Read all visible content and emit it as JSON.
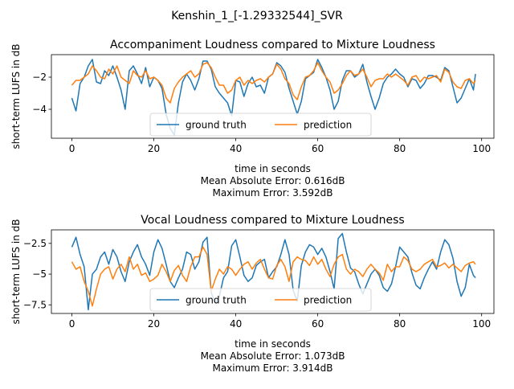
{
  "figure": {
    "title": "Kenshin_1_[-1.29332544]_SVR"
  },
  "chart_data": [
    {
      "type": "line",
      "title": "Accompaniment Loudness compared to Mixture Loudness",
      "xlabel": "time in seconds",
      "ylabel": "short-term LUFS in dB",
      "xlim": [
        -5,
        103
      ],
      "ylim": [
        -5.8,
        -0.6
      ],
      "xticks": [
        0,
        20,
        40,
        60,
        80,
        100
      ],
      "yticks": [
        -4,
        -2
      ],
      "grid": false,
      "legend": {
        "placement": "lower-center",
        "columns": 2
      },
      "stats": [
        "Mean Absolute Error: 0.616dB",
        "Maximum Error: 3.592dB"
      ],
      "series": [
        {
          "name": "ground truth",
          "color": "#1f77b4",
          "x": [
            0,
            1,
            2,
            3,
            4,
            5,
            6,
            7,
            8,
            9,
            10,
            11,
            12,
            13,
            14,
            15,
            16,
            17,
            18,
            19,
            20,
            21,
            22,
            23,
            24,
            25,
            26,
            27,
            28,
            29,
            30,
            31,
            32,
            33,
            34,
            35,
            36,
            37,
            38,
            39,
            40,
            41,
            42,
            43,
            44,
            45,
            46,
            47,
            48,
            49,
            50,
            51,
            52,
            53,
            54,
            55,
            56,
            57,
            58,
            59,
            60,
            61,
            62,
            63,
            64,
            65,
            66,
            67,
            68,
            69,
            70,
            71,
            72,
            73,
            74,
            75,
            76,
            77,
            78,
            79,
            80,
            81,
            82,
            83,
            84,
            85,
            86,
            87,
            88,
            89,
            90,
            91,
            92,
            93,
            94,
            95,
            96,
            97,
            98,
            98.5
          ],
          "y": [
            -3.3,
            -4.1,
            -2.4,
            -2.0,
            -1.3,
            -0.9,
            -2.3,
            -2.4,
            -1.6,
            -1.9,
            -1.3,
            -2.0,
            -2.8,
            -4.0,
            -1.6,
            -1.3,
            -1.8,
            -2.4,
            -1.4,
            -2.6,
            -2.0,
            -2.2,
            -2.7,
            -4.3,
            -5.2,
            -5.6,
            -3.6,
            -2.3,
            -1.8,
            -2.2,
            -2.8,
            -2.1,
            -1.0,
            -1.0,
            -1.5,
            -2.6,
            -3.0,
            -3.3,
            -3.6,
            -4.4,
            -2.2,
            -2.3,
            -3.2,
            -2.4,
            -2.0,
            -2.6,
            -2.5,
            -3.0,
            -2.0,
            -1.8,
            -1.1,
            -1.3,
            -1.7,
            -2.7,
            -3.5,
            -4.3,
            -3.5,
            -2.1,
            -1.9,
            -1.7,
            -0.9,
            -1.4,
            -2.0,
            -2.8,
            -4.0,
            -3.5,
            -2.2,
            -1.6,
            -1.6,
            -2.0,
            -1.8,
            -1.2,
            -2.3,
            -3.2,
            -4.0,
            -3.3,
            -2.4,
            -2.0,
            -1.8,
            -1.5,
            -1.8,
            -2.0,
            -2.6,
            -2.1,
            -2.2,
            -2.7,
            -2.4,
            -1.9,
            -1.9,
            -2.0,
            -2.2,
            -1.4,
            -1.6,
            -2.6,
            -3.6,
            -3.3,
            -2.7,
            -2.1,
            -2.8,
            -1.8
          ]
        },
        {
          "name": "prediction",
          "color": "#ff7f0e",
          "x": [
            0,
            1,
            2,
            3,
            4,
            5,
            6,
            7,
            8,
            9,
            10,
            11,
            12,
            13,
            14,
            15,
            16,
            17,
            18,
            19,
            20,
            21,
            22,
            23,
            24,
            25,
            26,
            27,
            28,
            29,
            30,
            31,
            32,
            33,
            34,
            35,
            36,
            37,
            38,
            39,
            40,
            41,
            42,
            43,
            44,
            45,
            46,
            47,
            48,
            49,
            50,
            51,
            52,
            53,
            54,
            55,
            56,
            57,
            58,
            59,
            60,
            61,
            62,
            63,
            64,
            65,
            66,
            67,
            68,
            69,
            70,
            71,
            72,
            73,
            74,
            75,
            76,
            77,
            78,
            79,
            80,
            81,
            82,
            83,
            84,
            85,
            86,
            87,
            88,
            89,
            90,
            91,
            92,
            93,
            94,
            95,
            96,
            97,
            98,
            98.5
          ],
          "y": [
            -2.5,
            -2.2,
            -2.2,
            -2.0,
            -1.8,
            -1.3,
            -1.6,
            -2.0,
            -2.1,
            -1.5,
            -1.8,
            -1.3,
            -2.0,
            -2.2,
            -2.4,
            -1.6,
            -1.9,
            -2.0,
            -1.6,
            -2.1,
            -2.0,
            -2.2,
            -2.5,
            -3.3,
            -3.6,
            -2.7,
            -2.3,
            -2.0,
            -1.8,
            -1.6,
            -2.0,
            -1.8,
            -1.2,
            -1.1,
            -1.4,
            -2.0,
            -2.5,
            -2.5,
            -3.0,
            -2.8,
            -2.2,
            -2.0,
            -2.5,
            -2.2,
            -2.4,
            -2.2,
            -2.1,
            -2.3,
            -2.0,
            -1.8,
            -1.2,
            -1.5,
            -2.1,
            -2.4,
            -3.1,
            -3.4,
            -2.6,
            -2.0,
            -1.9,
            -1.6,
            -1.1,
            -1.6,
            -2.0,
            -2.3,
            -3.0,
            -2.8,
            -2.4,
            -1.9,
            -1.6,
            -1.9,
            -1.8,
            -1.5,
            -2.0,
            -2.6,
            -2.2,
            -2.1,
            -2.1,
            -1.8,
            -2.0,
            -1.8,
            -2.0,
            -2.2,
            -2.5,
            -2.0,
            -1.9,
            -2.3,
            -2.0,
            -2.1,
            -2.0,
            -1.9,
            -2.3,
            -1.5,
            -1.7,
            -2.3,
            -2.6,
            -2.7,
            -2.2,
            -2.1,
            -2.4,
            -2.2
          ]
        }
      ]
    },
    {
      "type": "line",
      "title": "Vocal Loudness compared to Mixture Loudness",
      "xlabel": "time in seconds",
      "ylabel": "short-term LUFS in dB",
      "xlim": [
        -5,
        103
      ],
      "ylim": [
        -8.2,
        -1.4
      ],
      "xticks": [
        0,
        20,
        40,
        60,
        80,
        100
      ],
      "yticks": [
        -7.5,
        -5.0,
        -2.5
      ],
      "grid": false,
      "legend": {
        "placement": "lower-center",
        "columns": 2
      },
      "stats": [
        "Mean Absolute Error: 1.073dB",
        "Maximum Error: 3.914dB"
      ],
      "series": [
        {
          "name": "ground truth",
          "color": "#1f77b4",
          "x": [
            0,
            1,
            2,
            3,
            4,
            5,
            6,
            7,
            8,
            9,
            10,
            11,
            12,
            13,
            14,
            15,
            16,
            17,
            18,
            19,
            20,
            21,
            22,
            23,
            24,
            25,
            26,
            27,
            28,
            29,
            30,
            31,
            32,
            33,
            34,
            35,
            36,
            37,
            38,
            39,
            40,
            41,
            42,
            43,
            44,
            45,
            46,
            47,
            48,
            49,
            50,
            51,
            52,
            53,
            54,
            55,
            56,
            57,
            58,
            59,
            60,
            61,
            62,
            63,
            64,
            65,
            66,
            67,
            68,
            69,
            70,
            71,
            72,
            73,
            74,
            75,
            76,
            77,
            78,
            79,
            80,
            81,
            82,
            83,
            84,
            85,
            86,
            87,
            88,
            89,
            90,
            91,
            92,
            93,
            94,
            95,
            96,
            97,
            98,
            98.5
          ],
          "y": [
            -2.8,
            -2.0,
            -3.4,
            -4.4,
            -7.9,
            -5.0,
            -4.6,
            -3.6,
            -3.2,
            -4.2,
            -3.0,
            -3.6,
            -4.8,
            -5.6,
            -4.0,
            -3.2,
            -2.6,
            -3.6,
            -4.2,
            -5.1,
            -3.2,
            -2.2,
            -2.9,
            -4.2,
            -5.6,
            -6.1,
            -5.3,
            -4.6,
            -3.2,
            -3.4,
            -4.6,
            -4.0,
            -2.4,
            -2.0,
            -6.5,
            -7.4,
            -6.8,
            -5.3,
            -4.8,
            -2.7,
            -2.2,
            -3.6,
            -5.1,
            -5.6,
            -5.3,
            -4.3,
            -4.0,
            -3.8,
            -5.3,
            -4.8,
            -4.4,
            -3.4,
            -2.2,
            -3.4,
            -6.3,
            -7.2,
            -4.3,
            -3.2,
            -2.6,
            -2.8,
            -3.4,
            -2.9,
            -3.6,
            -4.8,
            -6.2,
            -2.1,
            -1.7,
            -3.2,
            -4.5,
            -4.8,
            -5.8,
            -6.6,
            -5.8,
            -5.0,
            -4.6,
            -5.1,
            -6.1,
            -6.4,
            -5.8,
            -4.4,
            -2.8,
            -3.2,
            -3.6,
            -4.9,
            -5.9,
            -6.2,
            -5.3,
            -4.6,
            -4.0,
            -4.6,
            -3.2,
            -2.2,
            -2.6,
            -3.7,
            -5.6,
            -6.8,
            -6.1,
            -4.2,
            -5.1,
            -5.3
          ]
        },
        {
          "name": "prediction",
          "color": "#ff7f0e",
          "x": [
            0,
            1,
            2,
            3,
            4,
            5,
            6,
            7,
            8,
            9,
            10,
            11,
            12,
            13,
            14,
            15,
            16,
            17,
            18,
            19,
            20,
            21,
            22,
            23,
            24,
            25,
            26,
            27,
            28,
            29,
            30,
            31,
            32,
            33,
            34,
            35,
            36,
            37,
            38,
            39,
            40,
            41,
            42,
            43,
            44,
            45,
            46,
            47,
            48,
            49,
            50,
            51,
            52,
            53,
            54,
            55,
            56,
            57,
            58,
            59,
            60,
            61,
            62,
            63,
            64,
            65,
            66,
            67,
            68,
            69,
            70,
            71,
            72,
            73,
            74,
            75,
            76,
            77,
            78,
            79,
            80,
            81,
            82,
            83,
            84,
            85,
            86,
            87,
            88,
            89,
            90,
            91,
            92,
            93,
            94,
            95,
            96,
            97,
            98,
            98.5
          ],
          "y": [
            -4.0,
            -4.6,
            -4.4,
            -5.6,
            -6.4,
            -7.6,
            -6.2,
            -5.0,
            -4.6,
            -4.4,
            -5.4,
            -4.6,
            -4.2,
            -4.8,
            -3.6,
            -4.6,
            -4.2,
            -5.1,
            -4.9,
            -5.6,
            -5.4,
            -5.1,
            -4.2,
            -4.8,
            -5.6,
            -4.7,
            -4.3,
            -5.1,
            -5.6,
            -4.4,
            -3.6,
            -3.6,
            -2.8,
            -3.4,
            -6.4,
            -5.4,
            -4.6,
            -5.0,
            -4.4,
            -4.6,
            -5.1,
            -4.6,
            -4.2,
            -4.0,
            -4.6,
            -4.1,
            -3.8,
            -4.6,
            -5.3,
            -5.4,
            -4.3,
            -3.8,
            -4.4,
            -5.6,
            -4.0,
            -3.6,
            -3.8,
            -3.9,
            -4.3,
            -3.6,
            -4.2,
            -3.8,
            -4.6,
            -5.2,
            -4.2,
            -3.6,
            -3.4,
            -4.6,
            -5.0,
            -4.6,
            -4.8,
            -5.2,
            -4.6,
            -4.2,
            -4.6,
            -4.9,
            -5.5,
            -4.2,
            -4.8,
            -4.4,
            -4.4,
            -3.6,
            -3.9,
            -4.6,
            -4.8,
            -4.6,
            -4.2,
            -4.0,
            -3.8,
            -4.4,
            -4.3,
            -4.1,
            -4.5,
            -4.2,
            -4.5,
            -4.8,
            -4.3,
            -4.1,
            -4.0,
            -4.2
          ]
        }
      ]
    }
  ]
}
